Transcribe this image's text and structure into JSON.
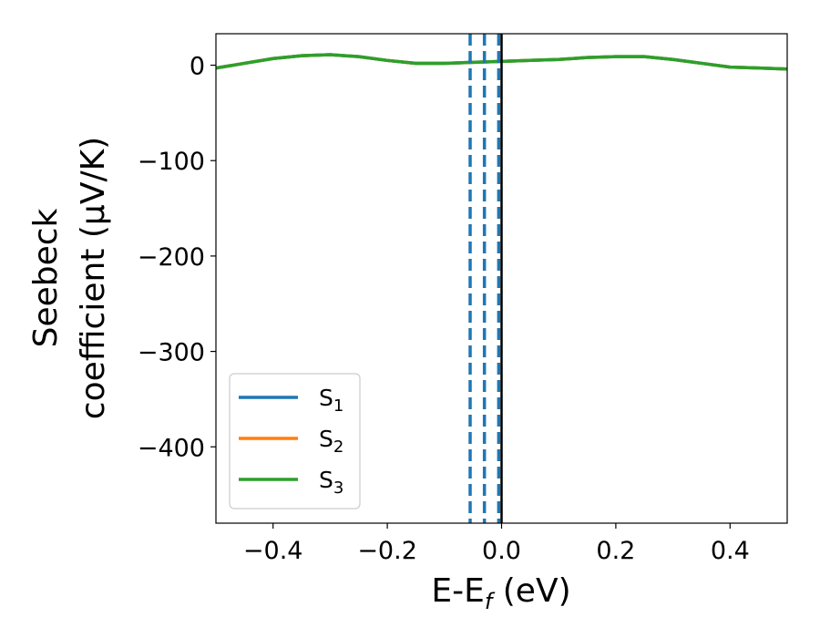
{
  "chart_data": {
    "type": "line",
    "xlabel_main": "E-E",
    "xlabel_sub": "f",
    "xlabel_unit": " (eV)",
    "ylabel_line1": "Seebeck",
    "ylabel_line2": "coefficient  (μV/K)",
    "xlim": [
      -0.5,
      0.5
    ],
    "ylim": [
      -480,
      33
    ],
    "xticks": [
      -0.4,
      -0.2,
      0.0,
      0.2,
      0.4
    ],
    "xtick_labels": [
      "−0.4",
      "−0.2",
      "0.0",
      "0.2",
      "0.4"
    ],
    "yticks": [
      0,
      -100,
      -200,
      -300,
      -400
    ],
    "ytick_labels": [
      "0",
      "−100",
      "−200",
      "−300",
      "−400"
    ],
    "grid": false,
    "legend_position": "lower-left",
    "series": [
      {
        "name": "S",
        "name_sub": "1",
        "color": "#1f77b4",
        "x": [
          -0.5,
          -0.45,
          -0.4,
          -0.35,
          -0.3,
          -0.25,
          -0.2,
          -0.15,
          -0.1,
          -0.05,
          0.0,
          0.05,
          0.1,
          0.15,
          0.2,
          0.25,
          0.3,
          0.35,
          0.4,
          0.45,
          0.5
        ],
        "y": [
          -3,
          2,
          7,
          10,
          11,
          9,
          5,
          2,
          2,
          3,
          4,
          5,
          6,
          8,
          9,
          9,
          6,
          2,
          -2,
          -3,
          -4
        ]
      },
      {
        "name": "S",
        "name_sub": "2",
        "color": "#ff7f0e",
        "x": [
          -0.5,
          -0.45,
          -0.4,
          -0.35,
          -0.3,
          -0.25,
          -0.2,
          -0.15,
          -0.1,
          -0.05,
          0.0,
          0.05,
          0.1,
          0.15,
          0.2,
          0.25,
          0.3,
          0.35,
          0.4,
          0.45,
          0.5
        ],
        "y": [
          -3,
          2,
          7,
          10,
          11,
          9,
          5,
          2,
          2,
          3,
          4,
          5,
          6,
          8,
          9,
          9,
          6,
          2,
          -2,
          -3,
          -4
        ]
      },
      {
        "name": "S",
        "name_sub": "3",
        "color": "#2ca02c",
        "x": [
          -0.5,
          -0.45,
          -0.4,
          -0.35,
          -0.3,
          -0.25,
          -0.2,
          -0.15,
          -0.1,
          -0.05,
          0.0,
          0.05,
          0.1,
          0.15,
          0.2,
          0.25,
          0.3,
          0.35,
          0.4,
          0.45,
          0.5
        ],
        "y": [
          -3,
          2,
          7,
          10,
          11,
          9,
          5,
          2,
          2,
          3,
          4,
          5,
          6,
          8,
          9,
          9,
          6,
          2,
          -2,
          -3,
          -4
        ]
      }
    ],
    "vlines": [
      {
        "x": -0.055,
        "style": "dashed",
        "color": "#1f77b4"
      },
      {
        "x": -0.03,
        "style": "dashed",
        "color": "#1f77b4"
      },
      {
        "x": -0.005,
        "style": "dashed",
        "color": "#1f77b4"
      },
      {
        "x": 0.0,
        "style": "solid",
        "color": "#000000"
      }
    ]
  }
}
